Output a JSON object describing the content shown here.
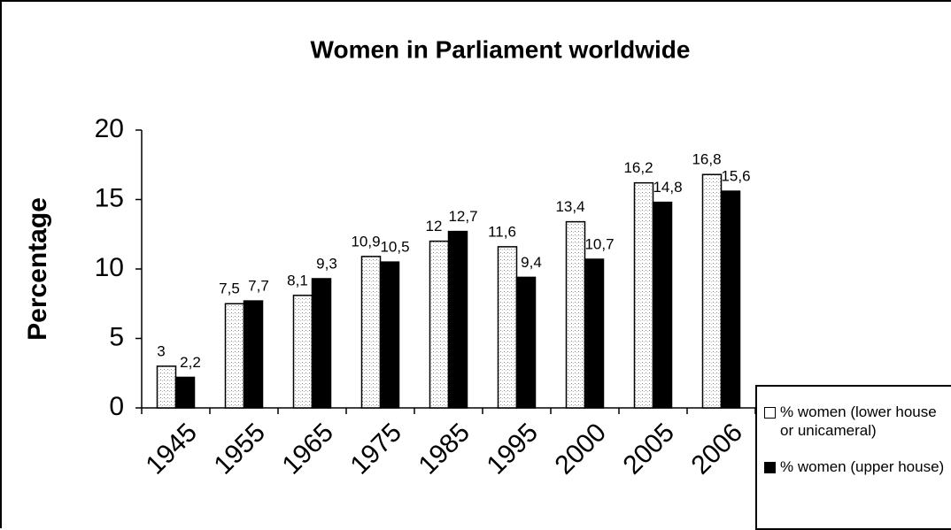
{
  "chart_data": {
    "type": "bar",
    "title": "Women in Parliament worldwide",
    "y_label": "Percentage",
    "categories": [
      "1945",
      "1955",
      "1965",
      "1975",
      "1985",
      "1995",
      "2000",
      "2005",
      "2006"
    ],
    "series": [
      {
        "name": "% women (lower house or unicameral)",
        "color": "#ffffff",
        "values": [
          3,
          7.5,
          8.1,
          10.9,
          12,
          11.6,
          13.4,
          16.2,
          16.8
        ],
        "value_labels": [
          "3",
          "7,5",
          "8,1",
          "10,9",
          "12",
          "11,6",
          "13,4",
          "16,2",
          "16,8"
        ]
      },
      {
        "name": "% women (upper house)",
        "color": "#000000",
        "values": [
          2.2,
          7.7,
          9.3,
          10.5,
          12.7,
          9.4,
          10.7,
          14.8,
          15.6
        ],
        "value_labels": [
          "2,2",
          "7,7",
          "9,3",
          "10,5",
          "12,7",
          "9,4",
          "10,7",
          "14,8",
          "15,6"
        ]
      }
    ],
    "ylim": [
      0,
      20
    ],
    "yticks": [
      0,
      5,
      10,
      15,
      20
    ],
    "grid": false,
    "legend": "lower right"
  }
}
